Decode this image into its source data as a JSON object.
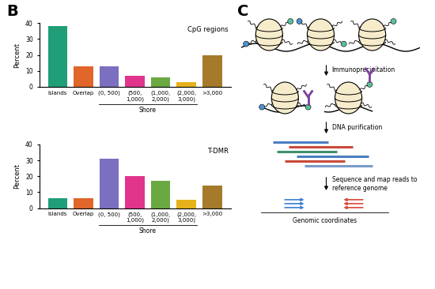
{
  "panel_labels": {
    "charts": "B",
    "diagram": "C"
  },
  "chart_data": [
    {
      "type": "bar",
      "title": "CpG regions",
      "y_label": "Percent",
      "categories": [
        "Islands",
        "Overlap",
        "(0, 500)",
        "(500,\n1,000)",
        "(1,000,\n2,000)",
        "(2,000,\n3,000)",
        ">3,000"
      ],
      "values": [
        38,
        13,
        13,
        7,
        6,
        3,
        20
      ],
      "colors": [
        "#1f9e78",
        "#e0662a",
        "#7b6fc0",
        "#e0358a",
        "#6aa842",
        "#e6b21c",
        "#a57a2a"
      ],
      "ylim": [
        0,
        40
      ],
      "yticks": [
        0,
        10,
        20,
        30,
        40
      ],
      "groups": [
        {
          "label": "Shore",
          "first": "(0, 500)",
          "last": "(2,000,\n3,000)"
        }
      ]
    },
    {
      "type": "bar",
      "title": "T-DMR",
      "y_label": "Percent",
      "categories": [
        "Islands",
        "Overlap",
        "(0, 500)",
        "(500,\n1,000)",
        "(1,000,\n2,000)",
        "(2,000,\n3,000)",
        ">3,000"
      ],
      "values": [
        6,
        6,
        31,
        20,
        17,
        5,
        14
      ],
      "colors": [
        "#1f9e78",
        "#e0662a",
        "#7b6fc0",
        "#e0358a",
        "#6aa842",
        "#e6b21c",
        "#a57a2a"
      ],
      "ylim": [
        0,
        40
      ],
      "yticks": [
        0,
        10,
        20,
        30,
        40
      ],
      "groups": [
        {
          "label": "Shore",
          "first": "(0, 500)",
          "last": "(2,000,\n3,000)"
        }
      ]
    }
  ],
  "diagram": {
    "steps": [
      "Immunoprecipitation",
      "DNA purification",
      "Sequence and map reads to\nreference genome"
    ],
    "axis_label": "Genomic coordinates"
  }
}
